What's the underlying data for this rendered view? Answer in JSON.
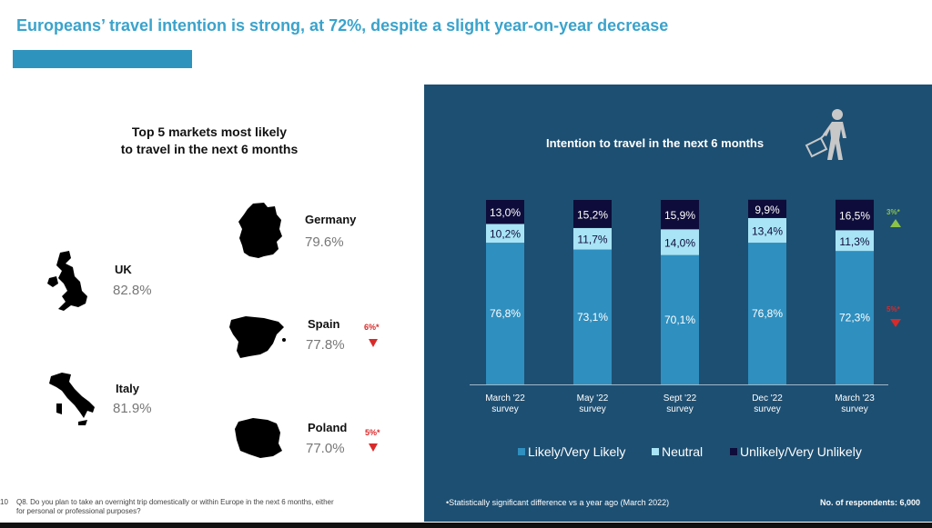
{
  "header": {
    "title": "Europeans’ travel intention is strong, at 72%, despite a slight year-on-year decrease"
  },
  "left": {
    "heading": "Top 5 markets most likely\nto travel in the next 6 months",
    "countries": [
      {
        "name": "Germany",
        "value": "79.6%",
        "delta": ""
      },
      {
        "name": "UK",
        "value": "82.8%",
        "delta": ""
      },
      {
        "name": "Spain",
        "value": "77.8%",
        "delta": "6%*"
      },
      {
        "name": "Italy",
        "value": "81.9%",
        "delta": ""
      },
      {
        "name": "Poland",
        "value": "77.0%",
        "delta": "5%*"
      }
    ],
    "page_number": "10",
    "footnote": "Q8. Do you plan to take an overnight trip domestically or within Europe in the next 6 months, either for personal or professional purposes?"
  },
  "panel": {
    "footnote": "•Statistically significant difference vs a year ago (March 2022)",
    "respondents": "No. of respondents: 6,000"
  },
  "colors": {
    "likely": "#2f8fbf",
    "neutral": "#a8e4f5",
    "unlikely": "#0e0c3a",
    "panel": "#1d4f72",
    "title": "#3aa3cc"
  },
  "chart_data": {
    "type": "bar",
    "stacked": true,
    "title": "Intention to travel in the next 6 months",
    "categories": [
      "March '22 survey",
      "May '22 survey",
      "Sept '22 survey",
      "Dec '22 survey",
      "March '23 survey"
    ],
    "category_lines": [
      [
        "March '22",
        "survey"
      ],
      [
        "May '22",
        "survey"
      ],
      [
        "Sept  '22",
        "survey"
      ],
      [
        "Dec '22",
        "survey"
      ],
      [
        "March '23",
        "survey"
      ]
    ],
    "series": [
      {
        "name": "Likely/Very Likely",
        "values": [
          76.8,
          73.1,
          70.1,
          76.8,
          72.3
        ],
        "labels": [
          "76,8%",
          "73,1%",
          "70,1%",
          "76,8%",
          "72,3%"
        ]
      },
      {
        "name": "Neutral",
        "values": [
          10.2,
          11.7,
          14.0,
          13.4,
          11.3
        ],
        "labels": [
          "10,2%",
          "11,7%",
          "14,0%",
          "13,4%",
          "11,3%"
        ]
      },
      {
        "name": "Unlikely/Very Unlikely",
        "values": [
          13.0,
          15.2,
          15.9,
          9.9,
          16.5
        ],
        "labels": [
          "13,0%",
          "15,2%",
          "15,9%",
          "9,9%",
          "16,5%"
        ]
      }
    ],
    "annotations": [
      {
        "series": "Unlikely/Very Unlikely",
        "category": "March '23 survey",
        "text": "3%*",
        "direction": "up"
      },
      {
        "series": "Likely/Very Likely",
        "category": "March '23 survey",
        "text": "5%*",
        "direction": "down"
      }
    ],
    "ylim": [
      0,
      100
    ],
    "grid": false,
    "legend": "bottom"
  }
}
